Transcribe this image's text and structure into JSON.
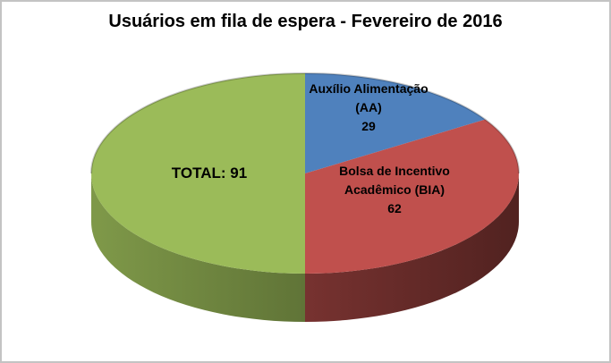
{
  "chart": {
    "title": "Usuários em fila de espera - Fevereiro de 2016",
    "labels": {
      "aa": {
        "line1": "Auxílio Alimentação",
        "line2": "(AA)",
        "line3": "29"
      },
      "bia": {
        "line1": "Bolsa de Incentivo",
        "line2": "Acadêmico (BIA)",
        "line3": "62"
      },
      "total": {
        "text": "TOTAL: 91"
      }
    }
  },
  "chart_data": {
    "type": "pie",
    "style": "pie-3d",
    "title": "Usuários em fila de espera - Fevereiro de 2016",
    "start_angle_deg": 0,
    "direction": "clockwise",
    "legend": "none",
    "slices": [
      {
        "id": "aa",
        "label": "Auxílio Alimentação (AA)",
        "value": 29,
        "color": "#4F81BD"
      },
      {
        "id": "bia",
        "label": "Bolsa de Incentivo Acadêmico (BIA)",
        "value": 62,
        "color": "#C0504D"
      },
      {
        "id": "total",
        "label": "TOTAL",
        "value": 91,
        "color": "#9BBB59"
      }
    ]
  }
}
